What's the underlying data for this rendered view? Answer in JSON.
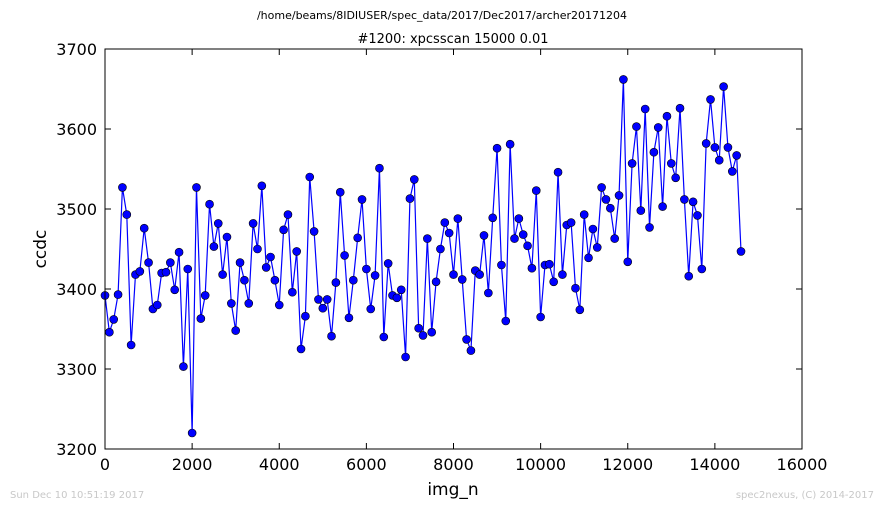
{
  "suptitle": "/home/beams/8IDIUSER/spec_data/2017/Dec2017/archer20171204",
  "footer": {
    "left": "Sun Dec 10 10:51:19 2017",
    "right": "spec2nexus, (C) 2014-2017"
  },
  "colors": {
    "series": "#0000ff",
    "axes": "#000000",
    "footer_text": "#c8c8c8"
  },
  "chart_data": {
    "type": "line",
    "title": "#1200: xpcsscan 15000 0.01",
    "xlabel": "img_n",
    "ylabel": "ccdc",
    "xlim": [
      0,
      16000
    ],
    "ylim": [
      3200,
      3700
    ],
    "xticks": [
      0,
      2000,
      4000,
      6000,
      8000,
      10000,
      12000,
      14000,
      16000
    ],
    "yticks": [
      3200,
      3300,
      3400,
      3500,
      3600,
      3700
    ],
    "xtick_labels": [
      "0",
      "2000",
      "4000",
      "6000",
      "8000",
      "10000",
      "12000",
      "14000",
      "16000"
    ],
    "ytick_labels": [
      "3200",
      "3300",
      "3400",
      "3500",
      "3600",
      "3700"
    ],
    "grid": false,
    "markers": "circle",
    "series": [
      {
        "x_start": 0,
        "x_step": 100,
        "y": [
          3392,
          3346,
          3362,
          3393,
          3527,
          3493,
          3330,
          3418,
          3422,
          3476,
          3433,
          3375,
          3380,
          3420,
          3421,
          3433,
          3399,
          3446,
          3303,
          3425,
          3220,
          3527,
          3363,
          3392,
          3506,
          3453,
          3482,
          3418,
          3465,
          3382,
          3348,
          3433,
          3411,
          3382,
          3482,
          3450,
          3529,
          3427,
          3440,
          3411,
          3380,
          3474,
          3493,
          3396,
          3447,
          3325,
          3366,
          3540,
          3472,
          3387,
          3376,
          3387,
          3341,
          3408,
          3521,
          3442,
          3364,
          3411,
          3464,
          3512,
          3425,
          3375,
          3417,
          3551,
          3340,
          3432,
          3392,
          3389,
          3399,
          3315,
          3513,
          3537,
          3351,
          3342,
          3463,
          3346,
          3409,
          3450,
          3483,
          3470,
          3418,
          3488,
          3412,
          3337,
          3323,
          3423,
          3418,
          3467,
          3395,
          3489,
          3576,
          3430,
          3360,
          3581,
          3463,
          3488,
          3468,
          3454,
          3426,
          3523,
          3365,
          3430,
          3431,
          3409,
          3546,
          3418,
          3480,
          3483,
          3401,
          3374,
          3493,
          3439,
          3475,
          3452,
          3527,
          3512,
          3501,
          3463,
          3517,
          3662,
          3434,
          3557,
          3603,
          3498,
          3625,
          3477,
          3571,
          3602,
          3503,
          3616,
          3557,
          3539,
          3626,
          3512,
          3416,
          3509,
          3492,
          3425,
          3582,
          3637,
          3577,
          3561,
          3653,
          3577,
          3547,
          3567,
          3447
        ]
      }
    ]
  }
}
